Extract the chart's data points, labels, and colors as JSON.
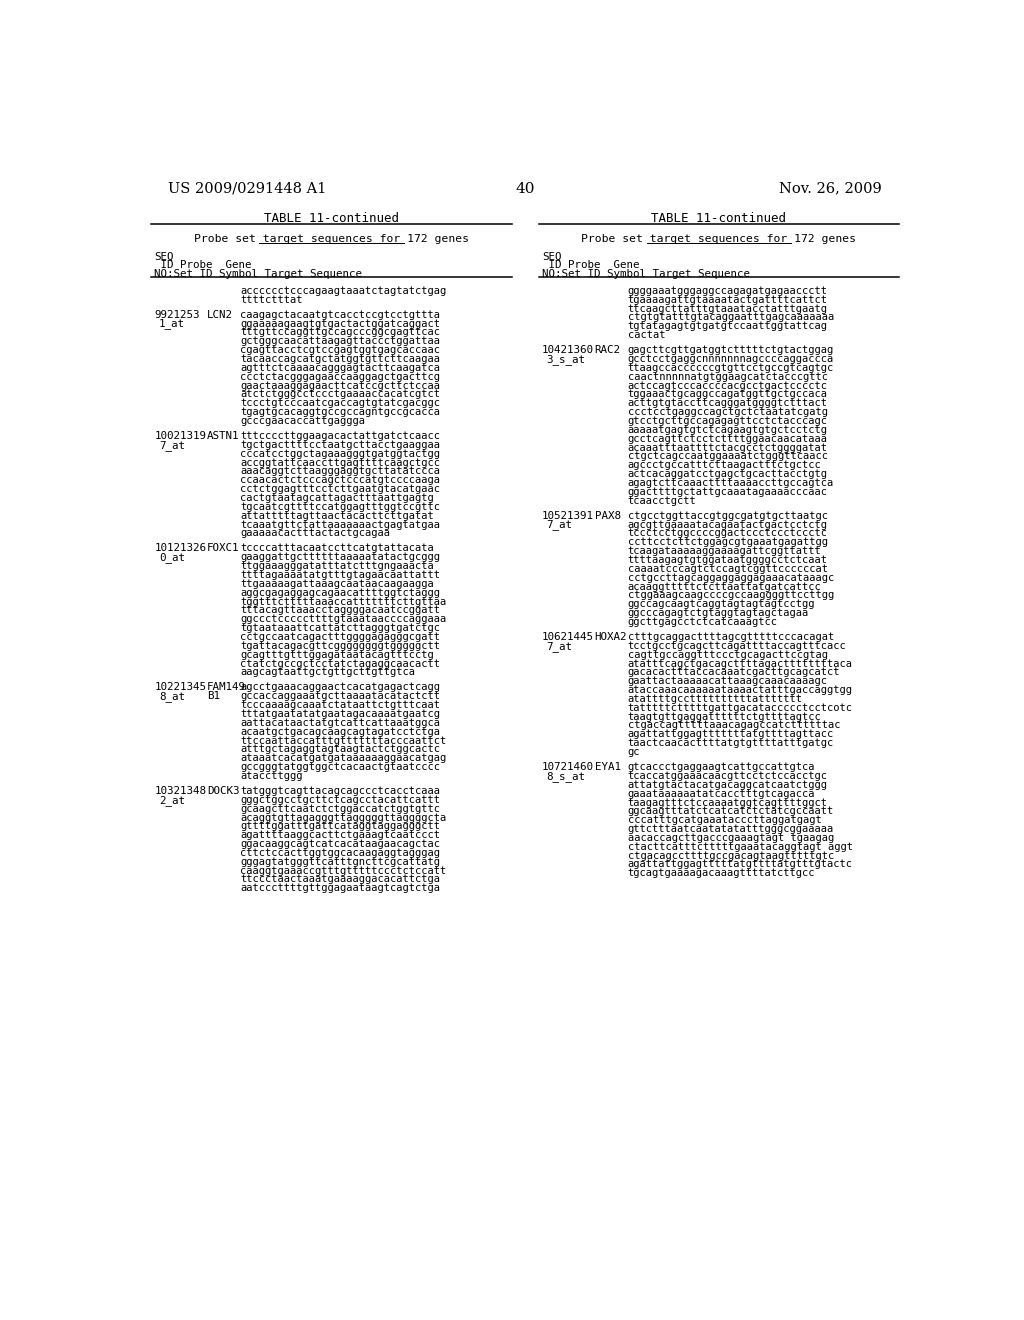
{
  "page_number": "40",
  "patent_number": "US 2009/0291448 A1",
  "date": "Nov. 26, 2009",
  "table_title": "TABLE 11-continued",
  "table_subtitle": "Probe set target sequences for 172 genes",
  "header_lines": [
    "SEQ",
    " ID Probe  Gene",
    "NO:Set ID Symbol Target Sequence"
  ],
  "background_color": "#ffffff",
  "text_color": "#000000",
  "left_column_entries": [
    {
      "seq_id": "",
      "probe_set": "",
      "gene": "",
      "sequence": "acccccctcccagaagtaaatctagtatctgag\nttttctttat"
    },
    {
      "seq_id": "9921253",
      "probe_set": "1_at",
      "gene": "LCN2",
      "sequence": "caagagctacaatgtcacctccgtcctgttta\nggaaaaagaagtgtgactactggatcaggact\ntttgttccaggttgccagcccggcgagttcac\ngctgggcaacattaagagttaccctggattaa\ncgagttacctcgtccgagtggtgagcaccaac\ntacaaccagcatgctatggtgttcttcaagaa\nagtttctcaaaacagggagtacttcaagatca\nccctctacgggagaaccaaggagctgacttcg\ngaactaaaggagaacttcatccgcttctccaa\natctctgggcctccctgaaaaccacatcgtct\ntccctgtcccaatcgaccagtgtatcgacggc\ntgagtgcacaggtgccgccagntgccgcacca\ngcccgaacaccattgaggga"
    },
    {
      "seq_id": "10021319",
      "probe_set": "7_at",
      "gene": "ASTN1",
      "sequence": "tttccccttggaagacactattgatctcaacc\ntgctgacttttcctaatgcttacctgaaggaa\ncccatcctggctagaaagggtgatggtactgg\naccggtattcaaccttgagttttcaagctgcc\naaacaggtcttaagggaggtgcttatatccca\nccaacactctcccagctcccatgtccccaaga\ncctctggagtttcctcttgaatgtacatgaac\ncactgtaatagcattagactttaattgagtg\ntgcaatcgttttccatggagtttggtccgttc\nattatttttagttaactacacttcttgatat\ntcaaatgttctattaaaaaaactgagtatgaa\ngaaaaacactttactactgcagaa"
    },
    {
      "seq_id": "10121326",
      "probe_set": "0_at",
      "gene": "FOXC1",
      "sequence": "tccccatttacaatccttcatgtattacata\ngaaggattgcttttttaaaaatatactgcggg\nttggaaagggatatttatctttgngaaacta\nttttagaaaatatgtttgtagaacaattattt\nttgaaaaagattaaagcaataacaagaagga\naggcgagaggagcagaacattttggtctaggg\ntggtttctttttaaaccatttttttcttgttaa\ntttacagttaaacctaggggacaatccggatt\nggccctcccccttttgtaaataaccccaggaaa\ntgtaataaattcattatcttagggtgatctgc\ncctgccaatcagactttggggagagggcgatt\ntgattacagacgttcggggggggtgggggctt\ngcagtttgtttggagataatacagtttcctg\nctatctgccgctcctatctagaggcaacactt\naagcagtaattgctgttgcttgttgtca"
    },
    {
      "seq_id": "10221345",
      "probe_set": "8_at",
      "gene": "FAM149",
      "gene2": "B1",
      "sequence": "agcctgaaacaggaactcacatgagactcagg\ngccaccaggaaatgcttaaaatacatactctt\ntcccaaaagcaaatctataattctgtttcaat\ntttatgaatatatgaatagacaaaatgaatcg\naattacataactatgtcattcattaaatggca\nacaatgctgacagcaagcagtagatcctctga\nttccaattaccatttgtttttttacccaattct\natttgctagaggtagtaagtactctggcactc\nataaatcacatgatgataaaaaaggaacatgag\ngccgggtatggtggctcacaactgtaatcccc\nataccttggg"
    },
    {
      "seq_id": "10321348",
      "probe_set": "2_at",
      "gene": "DOCK3",
      "gene2": "",
      "sequence": "tatgggtcagttacagcagccctcacctcaaa\ngggctggcctgcttctcagcctacattcattt\ngcaagcttcaatctctggaccatctggtgttc\nacaggtgttagagggttagggggttaggggcta\ngttttggatttgattcataggtaggagggctt\nagattttaaggcacttctgaaagtcaatccct\nggacaaggcagtcatcacataagaacagctac\ncttctccacttggtggcacaagaggtagggag\ngggagtatgggttcatttgncttcgcattatg\ncaaggtgaaaccgtttgtttttccctctccatt\nttccctaactaaatgaaaaggacacattctga\naatcccttttgttggagaataagtcagtctga"
    }
  ],
  "right_column_entries": [
    {
      "seq_id": "",
      "probe_set": "",
      "gene": "",
      "gene2": "",
      "sequence": "ggggaaatgggaggccagagatgagaaccctt\ntgaaaagattgtaaaatactgattttcattct\nttcaagcttatttgtaaatacctatttgaatg\nctgtgtatttgtacaggaatttgagcaaaaaaa\ntgtatagagtgtgatgtccaattggtattcag\ncactat"
    },
    {
      "seq_id": "10421360",
      "probe_set": "3_s_at",
      "gene": "RAC2",
      "gene2": "",
      "sequence": "gagcttcgttgatggtctttttctgtactggag\ngcctcctgaggcnnnnnnnagccccaggaccca\nttaagccaccccccgtgttcctgccgtcagtgc\ncaactnnnnnatgtggaagcatctacccgttc\nactccagtcccaccccacgcctgactcccctc\ntggaaactgcaggccagatggttgctgccaca\nacttgtgtaccttcagggatggggtctttact\nccctcctgaggccagctgctctaatatcgatg\ngtcctgcttgccagagagttcctctacccagc\naaaaatgagtgtctcagaagtgtgctcctctg\ngcctcagttctcctcttttggaacaacataaa\nacaaatttaattttctacgcctctggggatat\nctgctcagccaatggaaaatctgggttcaacc\nagccctgccatttcttaagactttctgctcc\nactcacaggatcctgagctgcacttacctgtg\nagagtcttcaaacttttaaaaccttgccagtca\nggacttttgctattgcaaatagaaaacccaac\ntcaacctgctt"
    },
    {
      "seq_id": "10521391",
      "probe_set": "7_at",
      "gene": "PAX8",
      "gene2": "",
      "sequence": "ctgcctggttaccgtggcgatgtgcttaatgc\nagcgttgaaaatacagaatactgactcctctg\ntccctcctggccccggactccctccctccctc\nccttcctcttctggagcgtgaaatgagattgg\ntcaagataaaaaggaaaagattcggttattt\nttttaagagtgtggataatggggcctctcaat\ncaaaatcccagtctccagtcggttccccccat\ncctgccttagcaggaggaggagaaacataaagc\nacaaggtttttctcttaattatgatcattcc\nctggaaagcaagccccgccaaggggttccttgg\nggccagcaagtcaggtagtagtagtcctgg\nggcccagagtctgtaggtagtagctagaa\nggcttgagcctctcatcaaagtcc"
    },
    {
      "seq_id": "10621445",
      "probe_set": "7_at",
      "gene": "HOXA2",
      "gene2": "",
      "sequence": "ctttgcaggacttttagcgtttttcccacagat\ntcctgcctgcagcttcagattttaccagtttcacc\ncagttgccaggtttccctgcagacttccgtag\natatttcagctgacagcttttagacttttttttaca\ngacacactttaccacaaatcgacttgcagcatct\ngaattactaaaaacattaaagcaaacaaaagc\nataccaaacaaaaaataaaactatttgaccaggtgg\natattttgccttttttttttattttttt\ntatttttctttttgattgacataccccctcctcotc\ntaagtgttgaggattttttctgttttagtcc\nctgaccagtttttaaacagagccatcttttttac\nagattattggagtttttttatgttttagttacc\ntaactcaacacttttatgtgttttatttgatgc\ngc"
    },
    {
      "seq_id": "10721460",
      "probe_set": "8_s_at",
      "gene": "EYA1",
      "gene2": "",
      "sequence": "gtcaccctgaggaagtcattgccattgtca\ntcaccatggaaacaacgttcctctccacctgc\nattatgtactacatgacaggcatcaatctggg\ngaaataaaaaatatcacctttgtcagacca\ntaagagtttctccaaaatggtcagttttggct\nggcaagtttatctcatcatctctatcgccaatt\ncccatttgcatgaaatacccttaggatgagt\ngttctttaatcaatatatatttgggcggaaaaa\naacaccagcttgacccgaaagtagt tgaagag\nctacttcatttctttttgaaatacaggtagt aggt\nctgacagccttttgccgacagtaagtttttgtc\nagattattggagtttttatgttttatgtttgtactc\ntgcagtgaaaagacaaagttttatcttgcc"
    }
  ]
}
